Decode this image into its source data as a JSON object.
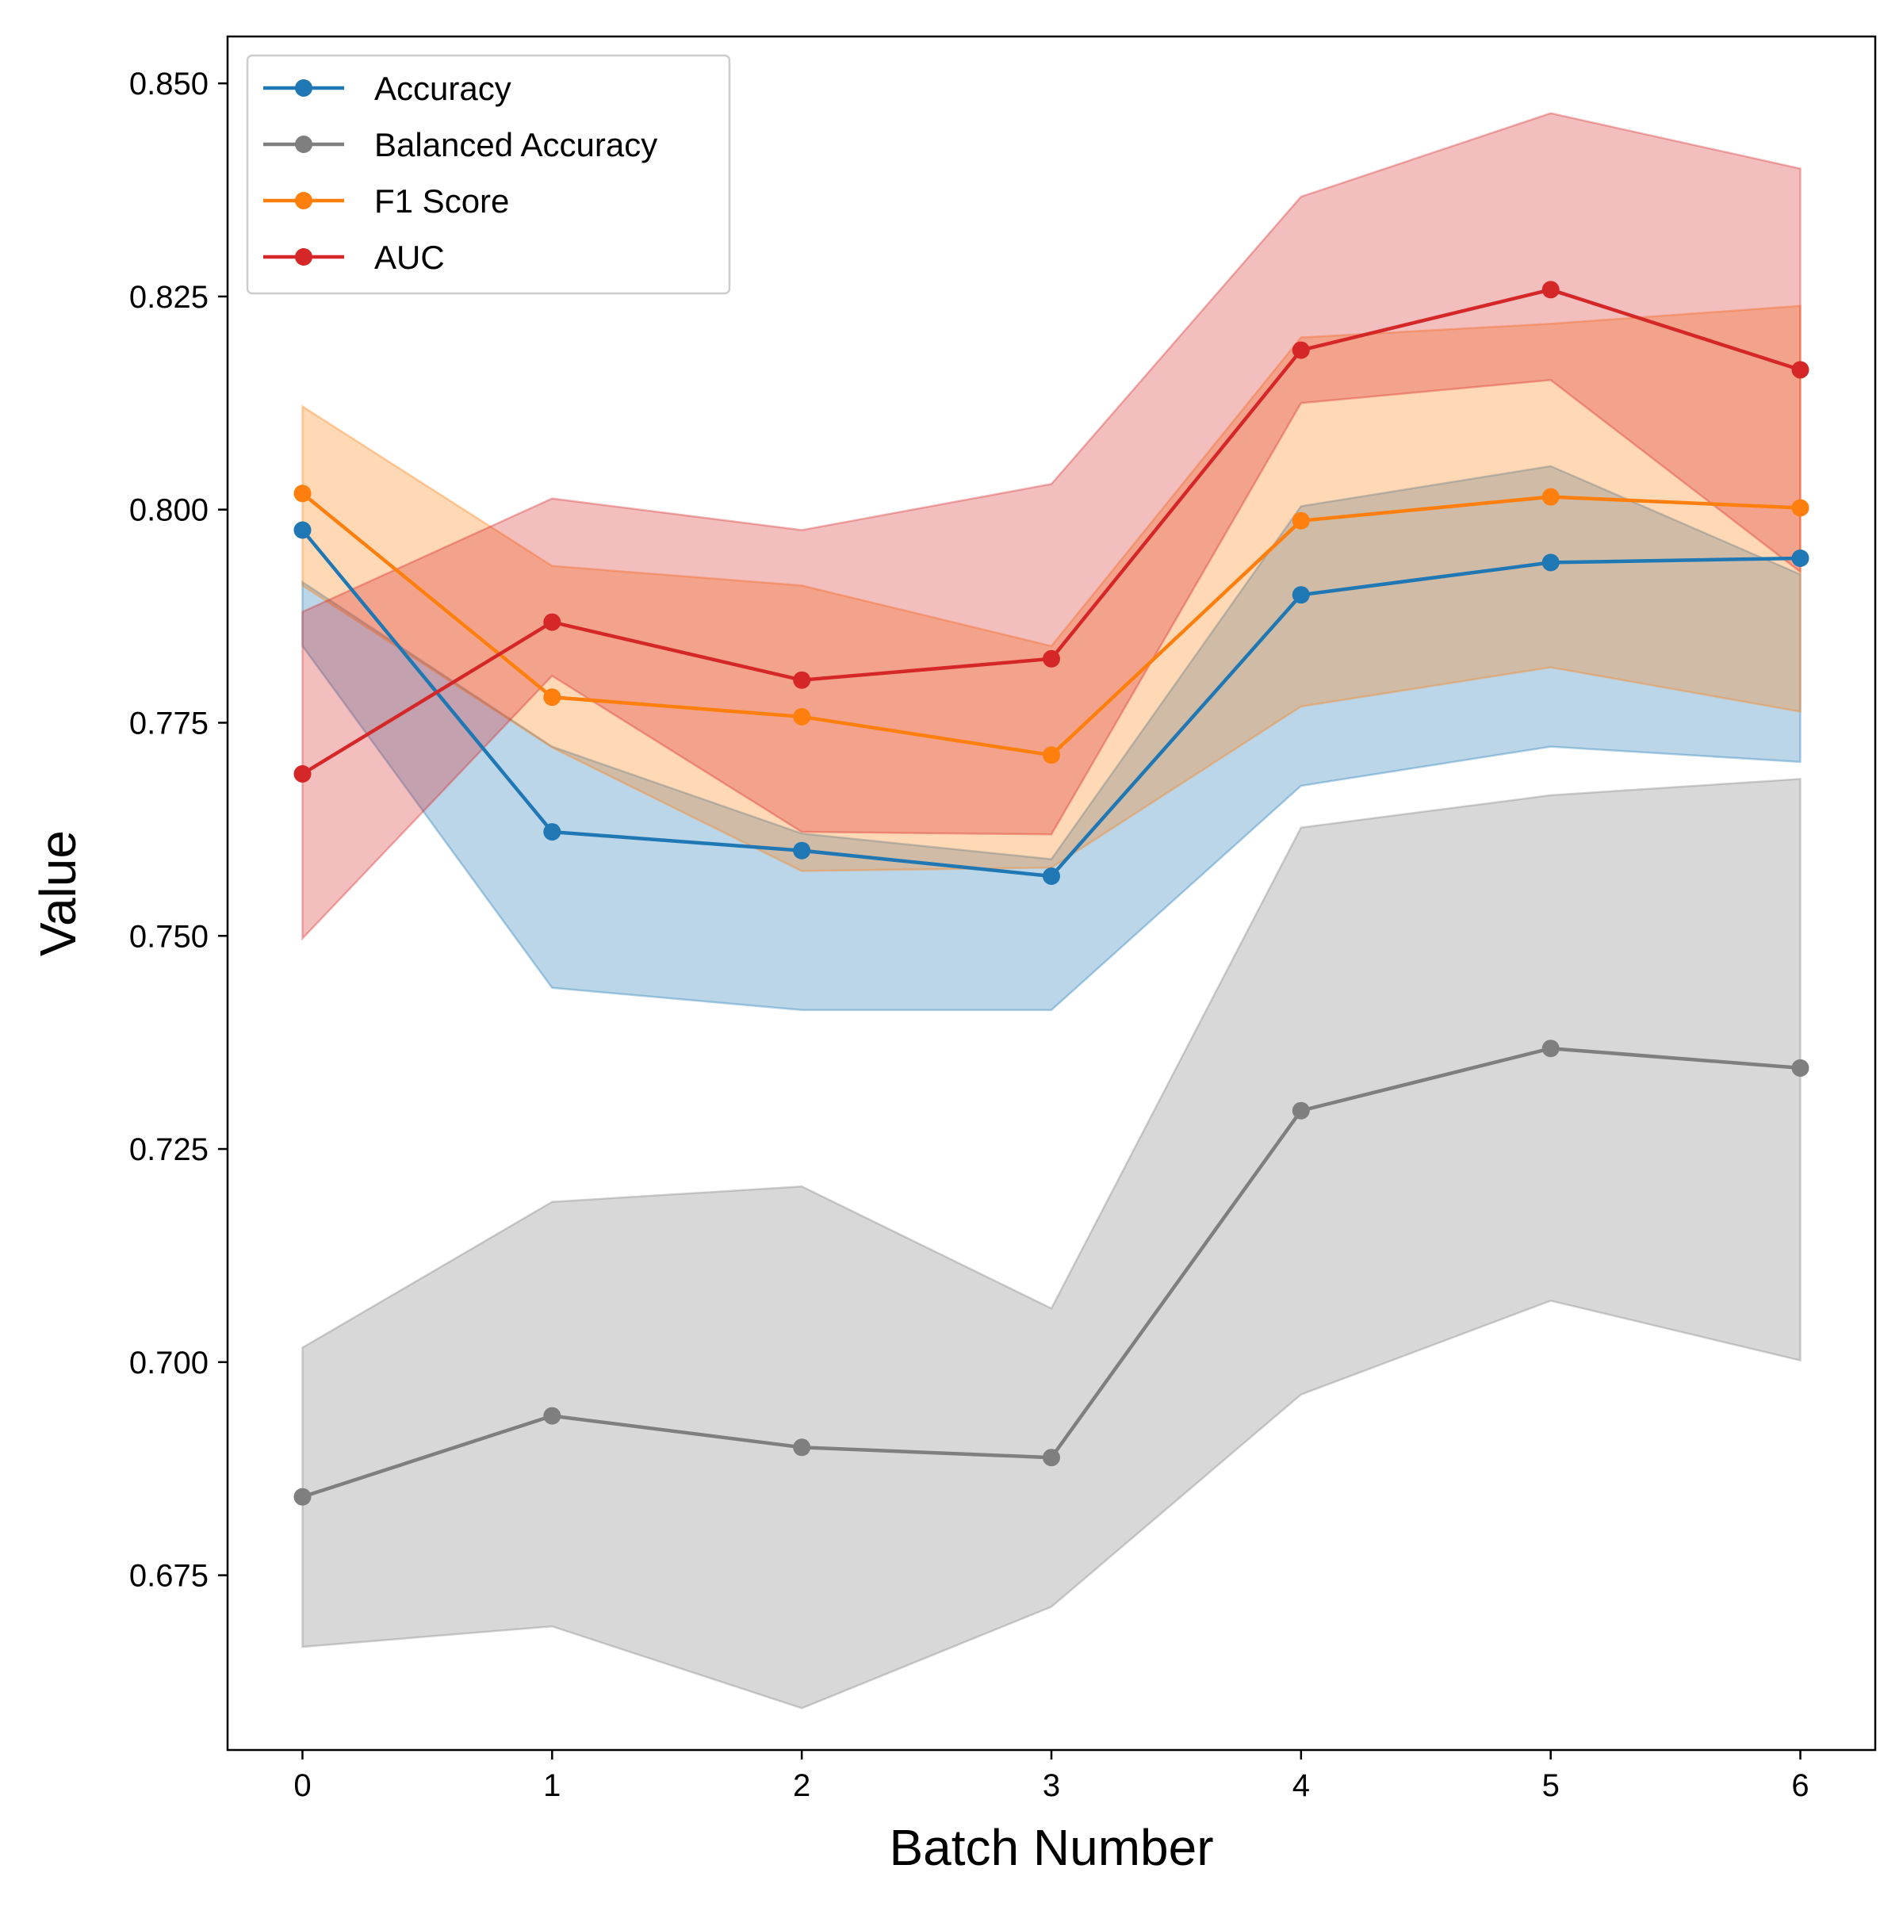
{
  "chart_data": {
    "type": "line",
    "xlabel": "Batch Number",
    "ylabel": "Value",
    "x": [
      0,
      1,
      2,
      3,
      4,
      5,
      6
    ],
    "xlim": [
      -0.3,
      6.3
    ],
    "ylim": [
      0.6545,
      0.8555
    ],
    "xticks": [
      "0",
      "1",
      "2",
      "3",
      "4",
      "5",
      "6"
    ],
    "yticks": [
      "0.675",
      "0.700",
      "0.725",
      "0.750",
      "0.775",
      "0.800",
      "0.825",
      "0.850"
    ],
    "grid": false,
    "legend_position": "top-left",
    "band": "shaded range around each series",
    "series": [
      {
        "name": "Accuracy",
        "color": "#1f77b4",
        "values": [
          0.7976,
          0.7622,
          0.76,
          0.757,
          0.79,
          0.7938,
          0.7943
        ],
        "lower": [
          0.784,
          0.7439,
          0.7413,
          0.7413,
          0.7676,
          0.7722,
          0.7704
        ],
        "upper": [
          0.7915,
          0.7722,
          0.762,
          0.759,
          0.8004,
          0.8051,
          0.7924
        ]
      },
      {
        "name": "Balanced Accuracy",
        "color": "#7f7f7f",
        "values": [
          0.6842,
          0.6937,
          0.69,
          0.6888,
          0.7295,
          0.7368,
          0.7345
        ],
        "lower": [
          0.6666,
          0.669,
          0.6594,
          0.6713,
          0.6962,
          0.7072,
          0.7002
        ],
        "upper": [
          0.7017,
          0.7188,
          0.7206,
          0.7063,
          0.7627,
          0.7665,
          0.7684
        ]
      },
      {
        "name": "F1 Score",
        "color": "#ff7f0e",
        "values": [
          0.8019,
          0.778,
          0.7757,
          0.7712,
          0.7987,
          0.8015,
          0.8002
        ],
        "lower": [
          0.7911,
          0.7721,
          0.7576,
          0.758,
          0.7769,
          0.7815,
          0.7763
        ],
        "upper": [
          0.8121,
          0.7934,
          0.7911,
          0.784,
          0.8202,
          0.8218,
          0.8239
        ]
      },
      {
        "name": "AUC",
        "color": "#d62728",
        "values": [
          0.769,
          0.7868,
          0.78,
          0.7825,
          0.8187,
          0.8258,
          0.8164
        ],
        "lower": [
          0.7497,
          0.7805,
          0.7622,
          0.7619,
          0.8125,
          0.8152,
          0.7927
        ],
        "upper": [
          0.788,
          0.8013,
          0.7976,
          0.803,
          0.8367,
          0.8465,
          0.84
        ]
      }
    ]
  }
}
